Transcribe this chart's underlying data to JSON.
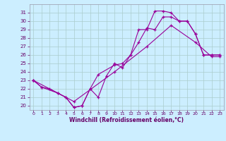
{
  "xlabel": "Windchill (Refroidissement éolien,°C)",
  "bg_color": "#cceeff",
  "line_color": "#990099",
  "xlim": [
    -0.5,
    23.5
  ],
  "ylim": [
    19.5,
    32.0
  ],
  "xticks": [
    0,
    1,
    2,
    3,
    4,
    5,
    6,
    7,
    8,
    9,
    10,
    11,
    12,
    13,
    14,
    15,
    16,
    17,
    18,
    19,
    20,
    21,
    22,
    23
  ],
  "yticks": [
    20,
    21,
    22,
    23,
    24,
    25,
    26,
    27,
    28,
    29,
    30,
    31
  ],
  "line1_x": [
    0,
    1,
    2,
    3,
    4,
    5,
    6,
    7,
    8,
    9,
    10,
    11,
    12,
    13,
    14,
    15,
    16,
    17,
    18,
    19,
    20,
    21,
    22,
    23
  ],
  "line1_y": [
    23.0,
    22.2,
    22.0,
    21.5,
    21.0,
    19.8,
    20.0,
    22.0,
    21.0,
    23.5,
    25.0,
    24.5,
    26.0,
    29.0,
    29.0,
    31.2,
    31.2,
    31.0,
    30.0,
    30.0,
    28.5,
    26.0,
    26.0,
    26.0
  ],
  "line2_x": [
    0,
    1,
    3,
    4,
    5,
    6,
    7,
    8,
    10,
    11,
    12,
    13,
    14,
    15,
    16,
    17,
    18,
    19,
    20,
    21,
    22,
    23
  ],
  "line2_y": [
    23.0,
    22.2,
    21.5,
    21.0,
    19.8,
    20.0,
    22.0,
    23.7,
    24.8,
    25.0,
    26.0,
    27.5,
    29.2,
    29.0,
    30.5,
    30.5,
    30.0,
    30.0,
    28.5,
    26.0,
    26.0,
    26.0
  ],
  "line3_x": [
    0,
    5,
    10,
    14,
    17,
    20,
    22,
    23
  ],
  "line3_y": [
    23.0,
    20.5,
    24.0,
    27.0,
    29.5,
    27.5,
    25.8,
    25.8
  ],
  "grid_color": "#aacccc",
  "tick_color": "#660066",
  "xlabel_color": "#660066",
  "spine_color": "#9999aa"
}
